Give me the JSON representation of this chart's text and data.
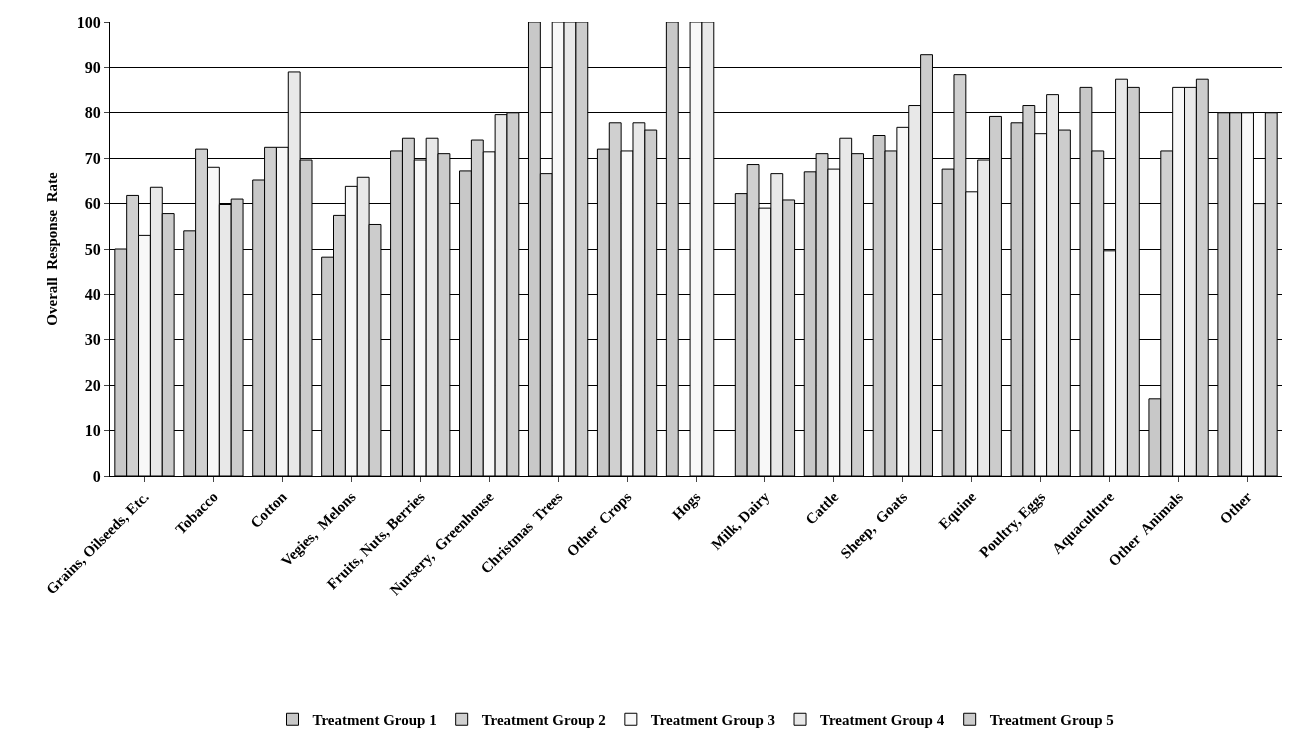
{
  "chart_data": {
    "type": "bar",
    "ylabel": "Overall  Response  Rate",
    "categories": [
      "Grains, Oilseeds, Etc.",
      "Tobacco",
      "Cotton",
      "Vegies,  Melons",
      "Fruits, Nuts, Berries",
      "Nursery,  Greenhouse",
      "Christmas  Trees",
      "Other  Crops",
      "Hogs",
      "Milk, Dairy",
      "Cattle",
      "Sheep,  Goats",
      "Equine",
      "Poultry, Eggs",
      "Aquaculture",
      "Other  Animals",
      "Other"
    ],
    "series": [
      {
        "name": "Treatment Group 1",
        "color": "#c8c8c8",
        "values": [
          50,
          54,
          65.2,
          48.2,
          71.6,
          67.2,
          100,
          72,
          100,
          62.2,
          67,
          75,
          67.6,
          77.8,
          85.6,
          17,
          80
        ]
      },
      {
        "name": "Treatment Group 2",
        "color": "#d0d0d0",
        "values": [
          61.8,
          72,
          72.4,
          57.4,
          74.4,
          74,
          66.6,
          77.8,
          null,
          68.6,
          71,
          71.6,
          88.4,
          81.6,
          71.6,
          71.6,
          80
        ]
      },
      {
        "name": "Treatment Group 3",
        "color": "#f8f8f8",
        "values": [
          53,
          68,
          72.4,
          63.8,
          69.6,
          71.4,
          100,
          71.6,
          100,
          59,
          67.6,
          76.8,
          62.6,
          75.4,
          49.6,
          85.6,
          80
        ]
      },
      {
        "name": "Treatment Group 4",
        "color": "#e8e8e8",
        "values": [
          63.6,
          59.8,
          89,
          65.8,
          74.4,
          79.6,
          100,
          77.8,
          100,
          66.6,
          74.4,
          81.6,
          69.6,
          84,
          87.4,
          85.6,
          60
        ]
      },
      {
        "name": "Treatment Group 5",
        "color": "#cccccc",
        "values": [
          57.8,
          61,
          69.6,
          55.4,
          71,
          80,
          100,
          76.2,
          null,
          60.8,
          71,
          92.8,
          79.2,
          76.2,
          85.6,
          87.4,
          80
        ]
      }
    ],
    "ylim": [
      0,
      100
    ],
    "yticks": [
      0,
      10,
      20,
      30,
      40,
      50,
      60,
      70,
      80,
      90,
      100
    ],
    "grid": "y",
    "legend": "bottom"
  }
}
